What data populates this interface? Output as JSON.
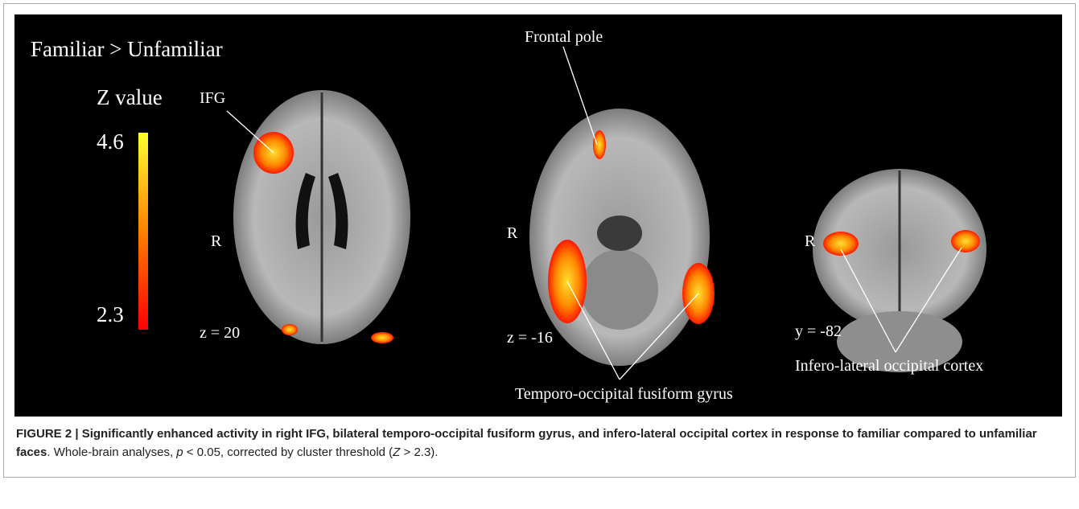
{
  "figure": {
    "title": "Familiar > Unfamiliar",
    "colorbar": {
      "label": "Z value",
      "max": 4.6,
      "min": 2.3
    },
    "annotations": [
      "IFG",
      "R",
      "z = 20",
      "Frontal pole",
      "R",
      "z = -16",
      "Temporo-occipital fusiform gyrus",
      "R",
      "y = -82",
      "Infero-lateral occipital cortex"
    ]
  },
  "caption": {
    "bold": "FIGURE 2 | Significantly enhanced activity in right IFG, bilateral temporo-occipital fusiform gyrus, and infero-lateral occipital cortex in response to familiar compared to unfamiliar faces",
    "parts": [
      ". Whole-brain analyses, ",
      "p",
      " < 0.05, corrected by cluster threshold (",
      "Z",
      " > 2.3)."
    ]
  }
}
